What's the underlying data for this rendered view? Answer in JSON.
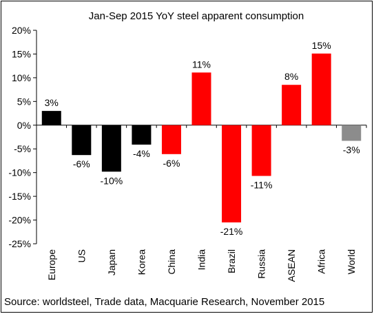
{
  "chart_data": {
    "type": "bar",
    "title": "Jan-Sep 2015  YoY steel apparent consumption",
    "categories": [
      "Europe",
      "US",
      "Japan",
      "Korea",
      "China",
      "India",
      "Brazil",
      "Russia",
      "ASEAN",
      "Africa",
      "World"
    ],
    "values": [
      3,
      -6.3,
      -9.8,
      -4.1,
      -6.1,
      11.1,
      -20.5,
      -10.7,
      8.5,
      15.1,
      -3.3
    ],
    "data_labels": [
      "3%",
      "-6%",
      "-10%",
      "-4%",
      "-6%",
      "11%",
      "-21%",
      "-11%",
      "8%",
      "15%",
      "-3%"
    ],
    "bar_colors": [
      "#000000",
      "#000000",
      "#000000",
      "#000000",
      "#ff0000",
      "#ff0000",
      "#ff0000",
      "#ff0000",
      "#ff0000",
      "#ff0000",
      "#8c8c8c"
    ],
    "ylim": [
      -25,
      20
    ],
    "yticks": [
      20,
      15,
      10,
      5,
      0,
      -5,
      -10,
      -15,
      -20,
      -25
    ],
    "ytick_labels": [
      "20%",
      "15%",
      "10%",
      "5%",
      "0%",
      "-5%",
      "-10%",
      "-15%",
      "-20%",
      "-25%"
    ],
    "xlabel": "",
    "ylabel": "",
    "grid": false,
    "legend": false
  },
  "footer": {
    "source": "Source: worldsteel, Trade data, Macquarie Research, November 2015"
  }
}
